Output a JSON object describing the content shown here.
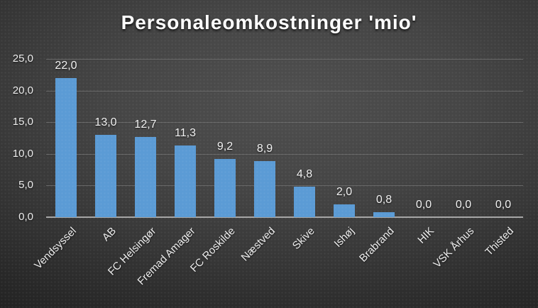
{
  "chart_data": {
    "type": "bar",
    "title": "Personaleomkostninger 'mio'",
    "categories": [
      "Vendsyssel",
      "AB",
      "FC Helsingør",
      "Fremad Amager",
      "FC Roskilde",
      "Næstved",
      "Skive",
      "Ishøj",
      "Brabrand",
      "HIK",
      "VSK Århus",
      "Thisted"
    ],
    "values": [
      22.0,
      13.0,
      12.7,
      11.3,
      9.2,
      8.9,
      4.8,
      2.0,
      0.8,
      0.0,
      0.0,
      0.0
    ],
    "value_labels": [
      "22,0",
      "13,0",
      "12,7",
      "11,3",
      "9,2",
      "8,9",
      "4,8",
      "2,0",
      "0,8",
      "0,0",
      "0,0",
      "0,0"
    ],
    "xlabel": "",
    "ylabel": "",
    "ylim": [
      0,
      25
    ],
    "ytick_interval": 5,
    "yticks": [
      0,
      5,
      10,
      15,
      20,
      25
    ],
    "ytick_labels": [
      "0,0",
      "5,0",
      "10,0",
      "15,0",
      "20,0",
      "25,0"
    ],
    "grid": true,
    "legend": "none",
    "decimal_separator": ",",
    "colors": {
      "bar": "#5B9BD5",
      "background_center": "#4f4f4f",
      "background_edge": "#222222",
      "gridline": "#666666",
      "axis_line": "#a6a6a6",
      "text": "#f2f2f2",
      "title_text": "#ffffff"
    }
  }
}
